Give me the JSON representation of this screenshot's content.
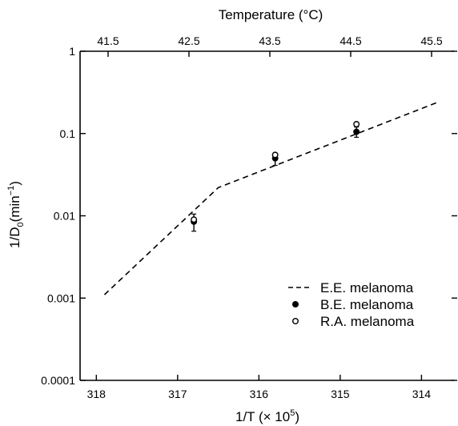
{
  "chart_data": {
    "type": "scatter",
    "top_axis_title": "Temperature (°C)",
    "x_axis_title": "1/T (× 10",
    "x_axis_title_sup": "5",
    "x_axis_title_end": ")",
    "y_axis_title_main": "1/D",
    "y_axis_title_sub": "0",
    "y_axis_title_rest": "(min",
    "y_axis_title_sup": "−1",
    "y_axis_title_end": ")",
    "x_scale": "reversed",
    "xlim": [
      318.2,
      313.6
    ],
    "y_scale": "log",
    "ylim": [
      0.0001,
      1
    ],
    "x_ticks": [
      {
        "value": 318,
        "label": "318"
      },
      {
        "value": 317,
        "label": "317"
      },
      {
        "value": 316,
        "label": "316"
      },
      {
        "value": 315,
        "label": "315"
      },
      {
        "value": 314,
        "label": "314"
      }
    ],
    "top_ticks": [
      {
        "value": 41.5,
        "label": "41.5"
      },
      {
        "value": 42.5,
        "label": "42.5"
      },
      {
        "value": 43.5,
        "label": "43.5"
      },
      {
        "value": 44.5,
        "label": "44.5"
      },
      {
        "value": 45.5,
        "label": "45.5"
      }
    ],
    "y_ticks": [
      {
        "value": 1,
        "label": "1"
      },
      {
        "value": 0.1,
        "label": "0.1"
      },
      {
        "value": 0.01,
        "label": "0.01"
      },
      {
        "value": 0.001,
        "label": "0.001"
      },
      {
        "value": 0.0001,
        "label": "0.0001"
      }
    ],
    "series": [
      {
        "name": "E.E. melanoma",
        "style": "dashed-line",
        "points": [
          {
            "x": 317.9,
            "y": 0.0011
          },
          {
            "x": 316.5,
            "y": 0.022
          },
          {
            "x": 313.8,
            "y": 0.24
          }
        ]
      },
      {
        "name": "B.E. melanoma",
        "style": "filled-circle",
        "points": [
          {
            "x": 316.8,
            "y": 0.0085,
            "err_low": 0.0065,
            "err_high": 0.0105
          },
          {
            "x": 315.8,
            "y": 0.05,
            "err_low": 0.041,
            "err_high": 0.058
          },
          {
            "x": 314.8,
            "y": 0.105,
            "err_low": 0.09,
            "err_high": 0.12
          }
        ]
      },
      {
        "name": "R.A. melanoma",
        "style": "open-circle",
        "points": [
          {
            "x": 316.8,
            "y": 0.009
          },
          {
            "x": 315.8,
            "y": 0.055
          },
          {
            "x": 314.8,
            "y": 0.13
          }
        ]
      }
    ],
    "legend_position": "lower-right",
    "grid": false
  }
}
